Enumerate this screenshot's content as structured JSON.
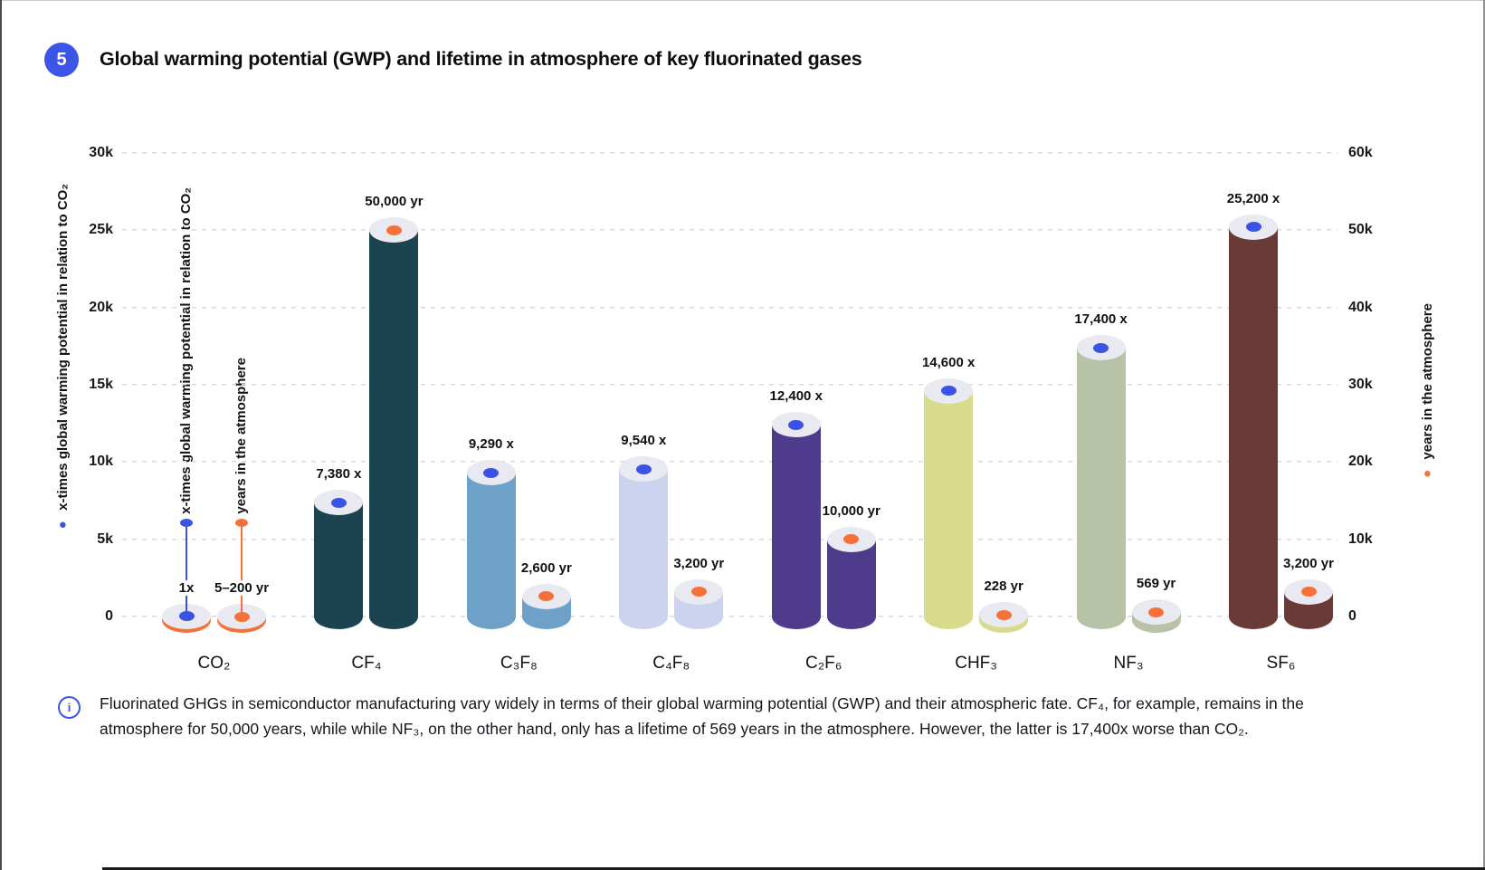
{
  "header": {
    "badge": "5",
    "title": "Global warming potential (GWP) and lifetime in atmosphere of key fluorinated gases"
  },
  "note": {
    "icon": "info-icon",
    "text": "Fluorinated GHGs in semiconductor manufacturing vary widely in terms of their global warming potential (GWP) and their atmospheric fate. CF₄, for example, remains in the atmosphere for 50,000 years, while while NF₃, on the other hand, only has a lifetime of 569 years in the atmosphere. However, the latter is 17,400x worse than CO₂."
  },
  "colors": {
    "accent_blue": "#3c55e7",
    "gwp_dot": "#3b53e4",
    "lifetime_dot": "#f4713a",
    "cylinder_top": "#e9e9f1",
    "gridline": "#d9d9de",
    "text": "#131418"
  },
  "chart_data": {
    "type": "bar",
    "subtype": "3d-cylinder-dual-axis",
    "grid": true,
    "title": "Global warming potential (GWP) and lifetime in atmosphere of key fluorinated gases",
    "left_axis": {
      "label": "x-times global warming potential in relation to CO₂",
      "ticks": [
        "0",
        "5k",
        "10k",
        "15k",
        "20k",
        "25k",
        "30k"
      ],
      "min": 0,
      "max": 30000,
      "dot_color": "#3b53e4"
    },
    "right_axis": {
      "label": "years in the atmosphere",
      "ticks": [
        "0",
        "10k",
        "20k",
        "30k",
        "40k",
        "50k",
        "60k"
      ],
      "min": 0,
      "max": 60000,
      "dot_color": "#f4713a"
    },
    "categories": [
      "CO₂",
      "CF₄",
      "C₃F₈",
      "C₄F₈",
      "C₂F₆",
      "CHF₃",
      "NF₃",
      "SF₆"
    ],
    "bar_colors": [
      "#f4713a",
      "#1c4450",
      "#6da1c8",
      "#ccd3ef",
      "#4f3b8b",
      "#d8da8c",
      "#b7c2a7",
      "#6a3a36"
    ],
    "series": [
      {
        "name": "x-times global warming potential in relation to CO₂",
        "axis": "left",
        "dot_color": "#3b53e4",
        "values": [
          1,
          7380,
          9290,
          9540,
          12400,
          14600,
          17400,
          25200
        ],
        "labels": [
          "1x",
          "7,380 x",
          "9,290 x",
          "9,540 x",
          "12,400 x",
          "14,600 x",
          "17,400 x",
          "25,200 x"
        ]
      },
      {
        "name": "years in the atmosphere",
        "axis": "right",
        "dot_color": "#f4713a",
        "values": [
          "5–200",
          50000,
          2600,
          3200,
          10000,
          228,
          569,
          3200
        ],
        "labels": [
          "5–200 yr",
          "50,000 yr",
          "2,600 yr",
          "3,200 yr",
          "10,000 yr",
          "228 yr",
          "569 yr",
          "3,200 yr"
        ]
      }
    ],
    "co2_callouts": [
      {
        "label": "x-times global warming potential in relation to CO₂",
        "color": "#3b53e4"
      },
      {
        "label": "years in the atmosphere",
        "color": "#f4713a"
      }
    ]
  }
}
